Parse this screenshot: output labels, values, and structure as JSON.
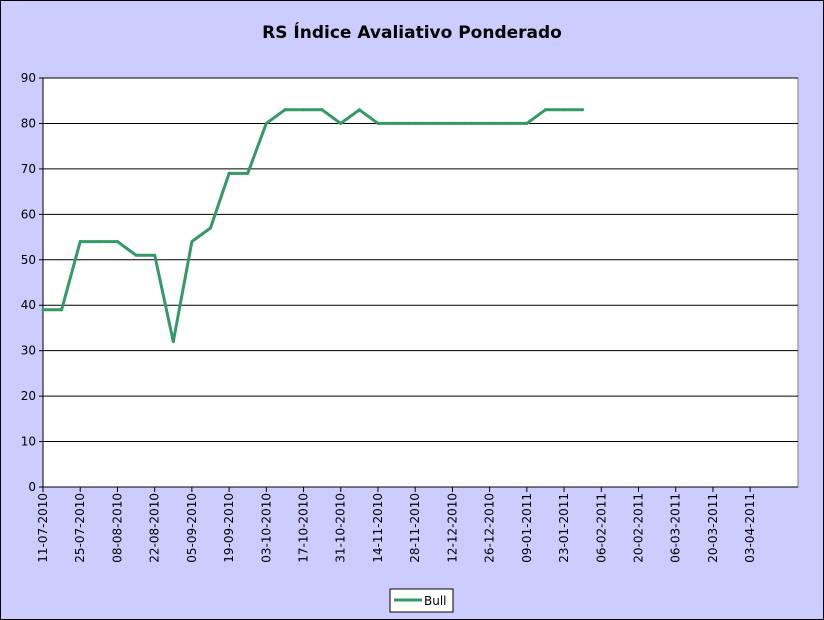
{
  "chart_data": {
    "type": "line",
    "title": "RS Índice Avaliativo Ponderado",
    "xlabel": "",
    "ylabel": "",
    "ylim": [
      0,
      90
    ],
    "yticks": [
      0,
      10,
      20,
      30,
      40,
      50,
      60,
      70,
      80,
      90
    ],
    "x_tick_labels": [
      "11-07-2010",
      "25-07-2010",
      "08-08-2010",
      "22-08-2010",
      "05-09-2010",
      "19-09-2010",
      "03-10-2010",
      "17-10-2010",
      "31-10-2010",
      "14-11-2010",
      "28-11-2010",
      "12-12-2010",
      "26-12-2010",
      "09-01-2011",
      "23-01-2011",
      "06-02-2011",
      "20-02-2011",
      "06-03-2011",
      "20-03-2011",
      "03-04-2011"
    ],
    "grid": true,
    "legend": "bottom-center",
    "series": [
      {
        "name": "Bull",
        "color": "#339966",
        "points": [
          {
            "x": "11-07-2010",
            "y": 39
          },
          {
            "x": "18-07-2010",
            "y": 39
          },
          {
            "x": "25-07-2010",
            "y": 54
          },
          {
            "x": "01-08-2010",
            "y": 54
          },
          {
            "x": "08-08-2010",
            "y": 54
          },
          {
            "x": "15-08-2010",
            "y": 51
          },
          {
            "x": "22-08-2010",
            "y": 51
          },
          {
            "x": "29-08-2010",
            "y": 32
          },
          {
            "x": "05-09-2010",
            "y": 54
          },
          {
            "x": "12-09-2010",
            "y": 57
          },
          {
            "x": "19-09-2010",
            "y": 69
          },
          {
            "x": "26-09-2010",
            "y": 69
          },
          {
            "x": "03-10-2010",
            "y": 80
          },
          {
            "x": "10-10-2010",
            "y": 83
          },
          {
            "x": "17-10-2010",
            "y": 83
          },
          {
            "x": "24-10-2010",
            "y": 83
          },
          {
            "x": "31-10-2010",
            "y": 80
          },
          {
            "x": "07-11-2010",
            "y": 83
          },
          {
            "x": "14-11-2010",
            "y": 80
          },
          {
            "x": "21-11-2010",
            "y": 80
          },
          {
            "x": "28-11-2010",
            "y": 80
          },
          {
            "x": "05-12-2010",
            "y": 80
          },
          {
            "x": "12-12-2010",
            "y": 80
          },
          {
            "x": "19-12-2010",
            "y": 80
          },
          {
            "x": "26-12-2010",
            "y": 80
          },
          {
            "x": "02-01-2011",
            "y": 80
          },
          {
            "x": "09-01-2011",
            "y": 80
          },
          {
            "x": "16-01-2011",
            "y": 83
          },
          {
            "x": "23-01-2011",
            "y": 83
          },
          {
            "x": "30-01-2011",
            "y": 83
          }
        ]
      }
    ]
  }
}
